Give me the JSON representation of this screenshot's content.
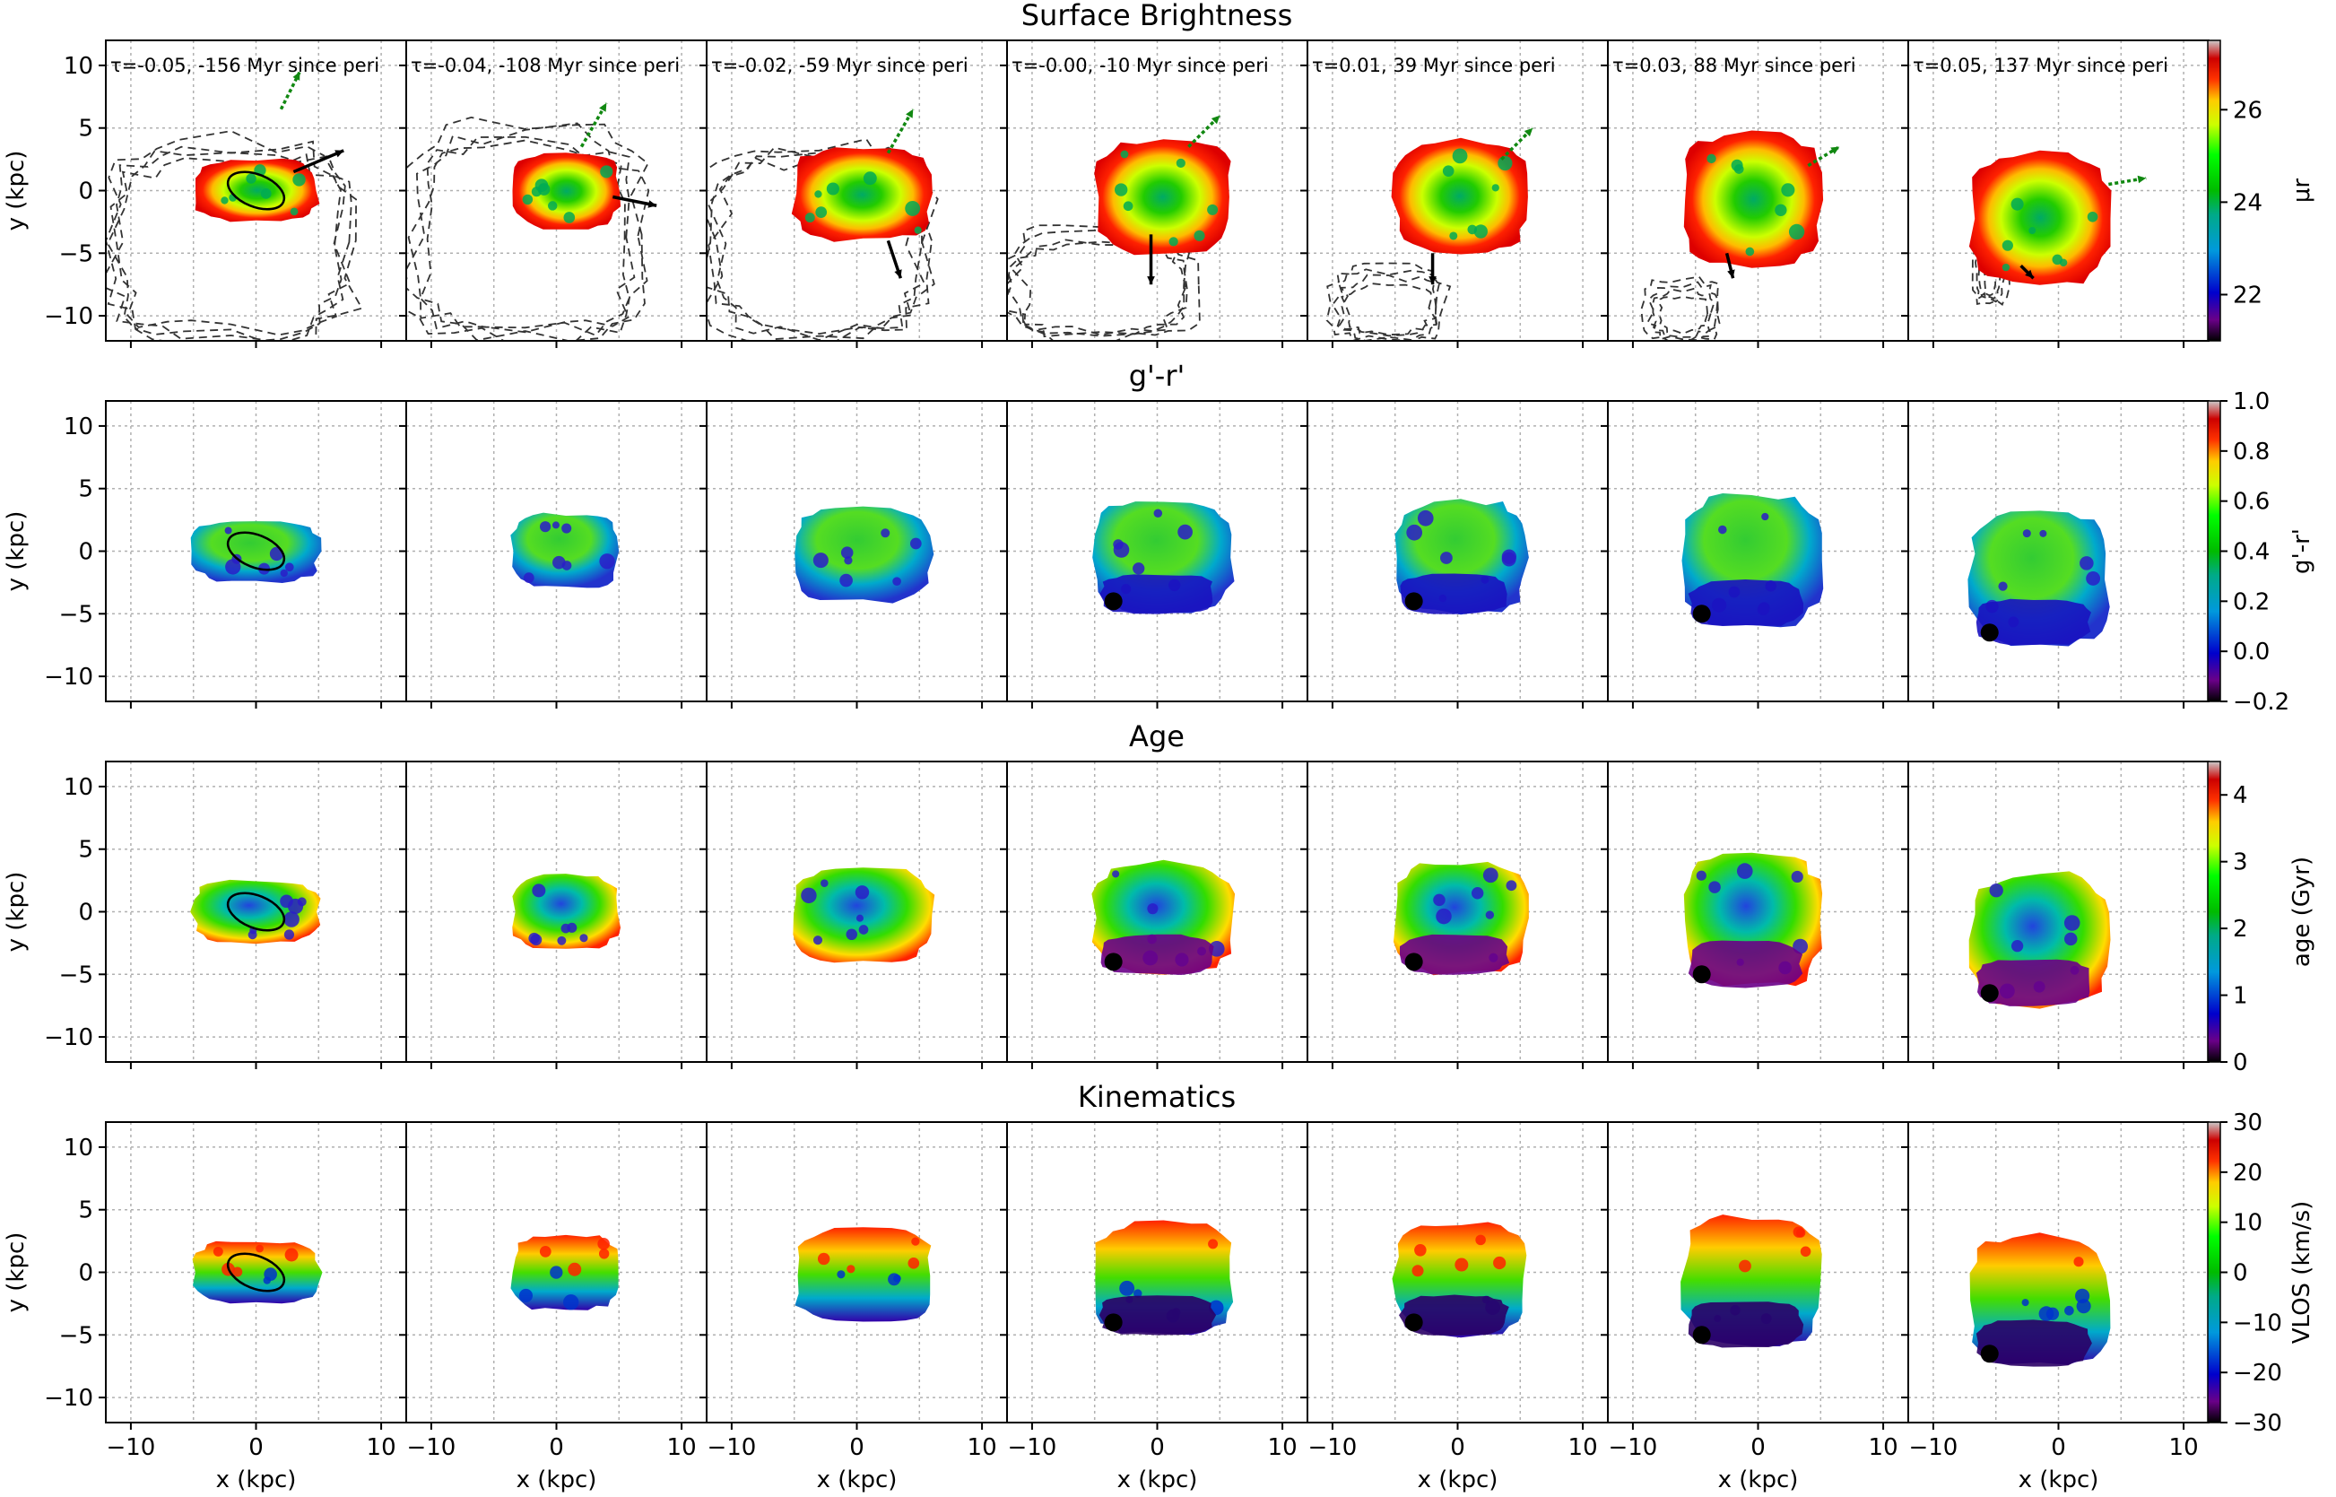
{
  "chart_data": {
    "type": "heatmap",
    "description_grid": "4 rows x 7 panels of galaxy maps, sharing x and y axes",
    "panel_titles": [
      "τ=-0.05, -156 Myr since peri",
      "τ=-0.04, -108 Myr since peri",
      "τ=-0.02, -59 Myr since peri",
      "τ=-0.00, -10 Myr since peri",
      "τ=0.01, 39 Myr since peri",
      "τ=0.03, 88 Myr since peri",
      "τ=0.05, 137 Myr since peri"
    ],
    "x_axis": {
      "label": "x (kpc)",
      "ticks": [
        -10,
        0,
        10
      ],
      "range": [
        -12,
        12
      ]
    },
    "y_axis": {
      "label": "y (kpc)",
      "ticks": [
        10,
        5,
        0,
        -5,
        -10
      ],
      "range": [
        -12,
        12
      ]
    },
    "grid": true,
    "rows": [
      {
        "id": "sb",
        "title": "Surface Brightness",
        "colorbar_label": "μr",
        "colorbar_ticks": [
          26,
          24,
          22
        ],
        "colorbar_range": [
          21,
          27.5
        ],
        "colormap": "nipy_spectral",
        "contours": true,
        "arrows": true
      },
      {
        "id": "gr",
        "title": "g'-r'",
        "colorbar_label": "g'-r'",
        "colorbar_ticks": [
          1.0,
          0.8,
          0.6,
          0.4,
          0.2,
          0.0,
          -0.2
        ],
        "colorbar_range": [
          -0.2,
          1.0
        ],
        "colormap": "nipy_spectral"
      },
      {
        "id": "age",
        "title": "Age",
        "colorbar_label": "age (Gyr)",
        "colorbar_ticks": [
          4,
          3,
          2,
          1,
          0
        ],
        "colorbar_range": [
          0,
          4.5
        ],
        "colormap": "nipy_spectral"
      },
      {
        "id": "kin",
        "title": "Kinematics",
        "colorbar_label": "VLOS (km/s)",
        "colorbar_ticks": [
          30,
          20,
          10,
          0,
          -10,
          -20,
          -30
        ],
        "colorbar_range": [
          -30,
          30
        ],
        "colormap": "nipy_spectral"
      }
    ],
    "tick_labels": {
      "x": [
        "−10",
        "0",
        "10"
      ],
      "y": [
        "10",
        "5",
        "0",
        "−5",
        "−10"
      ],
      "sb": [
        "26",
        "24",
        "22"
      ],
      "gr": [
        "1.0",
        "0.8",
        "0.6",
        "0.4",
        "0.2",
        "0.0",
        "−0.2"
      ],
      "age": [
        "4",
        "3",
        "2",
        "1",
        "0"
      ],
      "kin": [
        "30",
        "20",
        "10",
        "0",
        "−10",
        "−20",
        "−30"
      ]
    },
    "galaxy_centers_kpc": [
      [
        0,
        0
      ],
      [
        0,
        0
      ],
      [
        0,
        0
      ],
      [
        0,
        0
      ],
      [
        0,
        0
      ],
      [
        0,
        0
      ],
      [
        0,
        0
      ]
    ],
    "galaxy_extent_kpc": [
      [
        -5,
        5,
        -2.5,
        2.5
      ],
      [
        -3.5,
        5,
        -3,
        3
      ],
      [
        -5,
        6,
        -4,
        3.5
      ],
      [
        -5,
        6,
        -5,
        4
      ],
      [
        -5,
        5.5,
        -5,
        4
      ],
      [
        -6,
        5,
        -6,
        4.5
      ],
      [
        -7,
        4,
        -7.5,
        3
      ]
    ],
    "tidal_tail_extent_kpc": [
      [
        -12,
        8,
        -12,
        4
      ],
      [
        -12,
        7,
        -12,
        5
      ],
      [
        -12,
        6,
        -12,
        4
      ],
      [
        -12,
        3,
        -12,
        -3
      ],
      [
        -10,
        -1,
        -12,
        -6
      ],
      [
        -9,
        -3,
        -12,
        -7
      ],
      [
        -7,
        -4,
        -9,
        -4
      ]
    ],
    "arrows_kpc": [
      {
        "green": [
          [
            2,
            6.5
          ],
          [
            3.5,
            9.5
          ]
        ],
        "black": [
          [
            3,
            1.5
          ],
          [
            7,
            3.2
          ]
        ]
      },
      {
        "green": [
          [
            2,
            3.5
          ],
          [
            4,
            7
          ]
        ],
        "black": [
          [
            4.5,
            -0.5
          ],
          [
            8,
            -1.2
          ]
        ]
      },
      {
        "green": [
          [
            2.5,
            3
          ],
          [
            4.5,
            6.5
          ]
        ],
        "black": [
          [
            2.5,
            -4
          ],
          [
            3.5,
            -7
          ]
        ]
      },
      {
        "green": [
          [
            2.5,
            3.5
          ],
          [
            5,
            6
          ]
        ],
        "black": [
          [
            -0.5,
            -3.5
          ],
          [
            -0.5,
            -7.5
          ]
        ]
      },
      {
        "green": [
          [
            3.5,
            2.5
          ],
          [
            6,
            5
          ]
        ],
        "black": [
          [
            -2,
            -5
          ],
          [
            -2,
            -7.5
          ]
        ]
      },
      {
        "green": [
          [
            4,
            2
          ],
          [
            6.5,
            3.5
          ]
        ],
        "black": [
          [
            -2.5,
            -5
          ],
          [
            -2,
            -7
          ]
        ]
      },
      {
        "green": [
          [
            4,
            0.5
          ],
          [
            7,
            1
          ]
        ],
        "black": [
          [
            -3,
            -6
          ],
          [
            -2,
            -7
          ]
        ]
      }
    ]
  }
}
